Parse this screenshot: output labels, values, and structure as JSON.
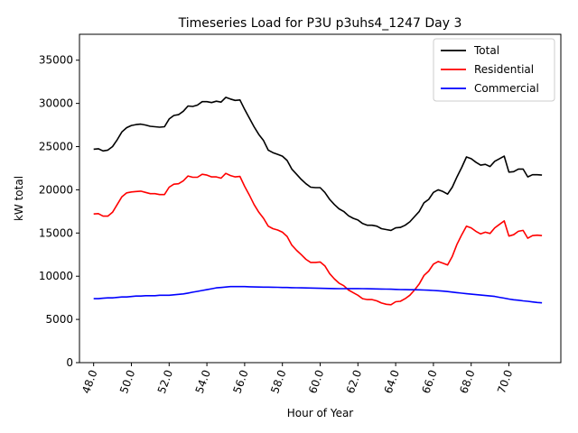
{
  "chart_data": {
    "type": "line",
    "title": "Timeseries Load for P3U p3uhs4_1247  Day 3",
    "xlabel": "Hour of Year",
    "ylabel": "kW total",
    "xlim": [
      47.25,
      72.75
    ],
    "ylim": [
      0,
      38000
    ],
    "xticks": [
      48,
      50,
      52,
      54,
      56,
      58,
      60,
      62,
      64,
      66,
      68,
      70
    ],
    "xtick_labels": [
      "48.0",
      "50.0",
      "52.0",
      "54.0",
      "56.0",
      "58.0",
      "60.0",
      "62.0",
      "64.0",
      "66.0",
      "68.0",
      "70.0"
    ],
    "yticks": [
      0,
      5000,
      10000,
      15000,
      20000,
      25000,
      30000,
      35000
    ],
    "ytick_labels": [
      "0",
      "5000",
      "10000",
      "15000",
      "20000",
      "25000",
      "30000",
      "35000"
    ],
    "legend_position": "top-right",
    "x": [
      48.0,
      48.25,
      48.5,
      48.75,
      49.0,
      49.25,
      49.5,
      49.75,
      50.0,
      50.25,
      50.5,
      50.75,
      51.0,
      51.25,
      51.5,
      51.75,
      52.0,
      52.25,
      52.5,
      52.75,
      53.0,
      53.25,
      53.5,
      53.75,
      54.0,
      54.25,
      54.5,
      54.75,
      55.0,
      55.25,
      55.5,
      55.75,
      56.0,
      56.25,
      56.5,
      56.75,
      57.0,
      57.25,
      57.5,
      57.75,
      58.0,
      58.25,
      58.5,
      58.75,
      59.0,
      59.25,
      59.5,
      59.75,
      60.0,
      60.25,
      60.5,
      60.75,
      61.0,
      61.25,
      61.5,
      61.75,
      62.0,
      62.25,
      62.5,
      62.75,
      63.0,
      63.25,
      63.5,
      63.75,
      64.0,
      64.25,
      64.5,
      64.75,
      65.0,
      65.25,
      65.5,
      65.75,
      66.0,
      66.25,
      66.5,
      66.75,
      67.0,
      67.25,
      67.5,
      67.75,
      68.0,
      68.25,
      68.5,
      68.75,
      69.0,
      69.25,
      69.5,
      69.75,
      70.0,
      70.25,
      70.5,
      70.75,
      71.0,
      71.25,
      71.5,
      71.75
    ],
    "series": [
      {
        "name": "Total",
        "color": "#000000",
        "values": [
          24700,
          24750,
          24500,
          24600,
          25000,
          25800,
          26700,
          27200,
          27450,
          27550,
          27600,
          27500,
          27350,
          27300,
          27250,
          27300,
          28200,
          28600,
          28700,
          29100,
          29700,
          29650,
          29800,
          30200,
          30200,
          30100,
          30250,
          30150,
          30700,
          30500,
          30350,
          30400,
          29300,
          28300,
          27300,
          26400,
          25700,
          24600,
          24300,
          24100,
          23900,
          23400,
          22400,
          21800,
          21200,
          20700,
          20300,
          20250,
          20250,
          19700,
          18900,
          18300,
          17800,
          17500,
          17000,
          16700,
          16500,
          16100,
          15900,
          15900,
          15800,
          15500,
          15400,
          15300,
          15600,
          15650,
          15900,
          16300,
          16900,
          17500,
          18500,
          18900,
          19700,
          20000,
          19800,
          19500,
          20300,
          21500,
          22600,
          23800,
          23600,
          23200,
          22850,
          22950,
          22700,
          23300,
          23600,
          23900,
          22050,
          22100,
          22400,
          22400,
          21500,
          21750,
          21750,
          21700
        ]
      },
      {
        "name": "Residential",
        "color": "#ff0000",
        "values": [
          17200,
          17250,
          16950,
          16950,
          17400,
          18300,
          19200,
          19650,
          19750,
          19800,
          19850,
          19700,
          19550,
          19550,
          19450,
          19450,
          20300,
          20650,
          20700,
          21050,
          21600,
          21450,
          21450,
          21800,
          21700,
          21500,
          21500,
          21350,
          21900,
          21650,
          21500,
          21550,
          20400,
          19400,
          18300,
          17400,
          16700,
          15800,
          15500,
          15350,
          15100,
          14600,
          13600,
          13000,
          12500,
          11950,
          11600,
          11600,
          11650,
          11200,
          10300,
          9700,
          9200,
          8900,
          8400,
          8100,
          7800,
          7400,
          7300,
          7300,
          7150,
          6900,
          6750,
          6700,
          7050,
          7100,
          7400,
          7800,
          8400,
          9100,
          10100,
          10600,
          11400,
          11700,
          11500,
          11300,
          12300,
          13700,
          14800,
          15800,
          15600,
          15200,
          14900,
          15100,
          14950,
          15600,
          16000,
          16400,
          14650,
          14800,
          15200,
          15300,
          14400,
          14700,
          14750,
          14700
        ]
      },
      {
        "name": "Commercial",
        "color": "#0000ff",
        "values": [
          7400,
          7400,
          7450,
          7500,
          7500,
          7550,
          7600,
          7600,
          7650,
          7700,
          7700,
          7750,
          7750,
          7750,
          7800,
          7800,
          7800,
          7850,
          7900,
          7950,
          8050,
          8150,
          8250,
          8350,
          8450,
          8550,
          8650,
          8700,
          8750,
          8800,
          8800,
          8800,
          8800,
          8780,
          8760,
          8750,
          8740,
          8740,
          8730,
          8720,
          8700,
          8700,
          8680,
          8660,
          8650,
          8640,
          8630,
          8620,
          8600,
          8590,
          8580,
          8570,
          8560,
          8560,
          8570,
          8570,
          8570,
          8560,
          8550,
          8540,
          8530,
          8520,
          8510,
          8500,
          8480,
          8460,
          8450,
          8440,
          8430,
          8420,
          8400,
          8380,
          8350,
          8320,
          8280,
          8230,
          8160,
          8100,
          8040,
          7980,
          7920,
          7870,
          7820,
          7770,
          7720,
          7660,
          7560,
          7460,
          7360,
          7280,
          7220,
          7150,
          7100,
          7030,
          6960,
          6920
        ]
      }
    ]
  }
}
